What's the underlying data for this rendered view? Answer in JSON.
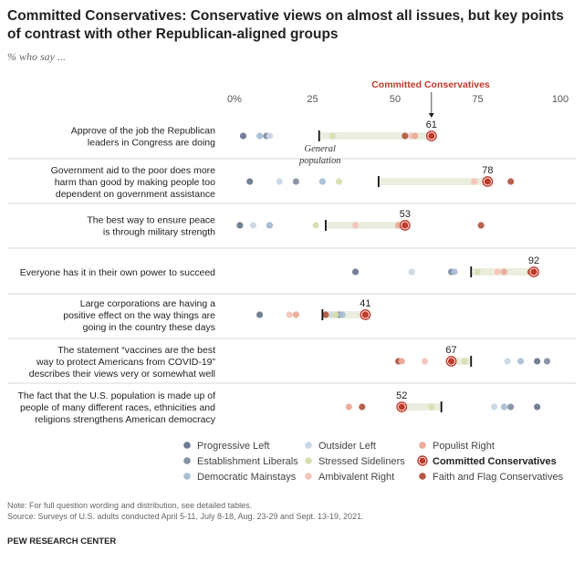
{
  "title_lines": [
    "Committed Conservatives: Conservative views on almost all issues, but key points",
    "of contrast with other Republican-aligned groups"
  ],
  "subtitle": "% who say ...",
  "annotation_top": "Committed Conservatives",
  "general_population_label": [
    "General",
    "population"
  ],
  "colors": {
    "Progressive Left": "#6b7a8f",
    "Establishment Liberals": "#8590a3",
    "Democratic Mainstays": "#a9bfd6",
    "Outsider Left": "#c9d7e6",
    "Stressed Sideliners": "#d7dfb2",
    "Ambivalent Right": "#f3c4bb",
    "Populist Right": "#ecaa99",
    "Committed Conservatives": "#c0392b",
    "Faith and Flag Conservatives": "#b05a45",
    "band": "#ebeedf",
    "divider": "#cccccc"
  },
  "legend": [
    {
      "label": "Progressive Left",
      "group": "Progressive Left"
    },
    {
      "label": "Outsider Left",
      "group": "Outsider Left"
    },
    {
      "label": "Populist Right",
      "group": "Populist Right"
    },
    {
      "label": "Establishment Liberals",
      "group": "Establishment Liberals"
    },
    {
      "label": "Stressed Sideliners",
      "group": "Stressed Sideliners"
    },
    {
      "label": "Committed Conservatives",
      "group": "Committed Conservatives"
    },
    {
      "label": "Democratic Mainstays",
      "group": "Democratic Mainstays"
    },
    {
      "label": "Ambivalent Right",
      "group": "Ambivalent Right"
    },
    {
      "label": "Faith and Flag Conservatives",
      "group": "Faith and Flag Conservatives"
    }
  ],
  "chart_data": {
    "type": "scatter",
    "xlim": [
      0,
      100
    ],
    "xticks": [
      "0%",
      "25",
      "50",
      "75",
      "100"
    ],
    "rows": [
      {
        "label": [
          "Approve of the job the Republican",
          "leaders in Congress are doing"
        ],
        "general_population": 27,
        "committed_conservatives": 61,
        "value_label": "61",
        "points": [
          {
            "group": "Progressive Left",
            "value": 4
          },
          {
            "group": "Democratic Mainstays",
            "value": 9
          },
          {
            "group": "Establishment Liberals",
            "value": 11
          },
          {
            "group": "Outsider Left",
            "value": 12
          },
          {
            "group": "Stressed Sideliners",
            "value": 31
          },
          {
            "group": "Faith and Flag Conservatives",
            "value": 53
          },
          {
            "group": "Ambivalent Right",
            "value": 55
          },
          {
            "group": "Populist Right",
            "value": 56
          }
        ]
      },
      {
        "label": [
          "Government aid to the poor does more",
          "harm than good by making people too",
          "dependent on government assistance"
        ],
        "general_population": 45,
        "committed_conservatives": 78,
        "value_label": "78",
        "points": [
          {
            "group": "Progressive Left",
            "value": 6
          },
          {
            "group": "Outsider Left",
            "value": 15
          },
          {
            "group": "Establishment Liberals",
            "value": 20
          },
          {
            "group": "Democratic Mainstays",
            "value": 28
          },
          {
            "group": "Stressed Sideliners",
            "value": 33
          },
          {
            "group": "Ambivalent Right",
            "value": 74
          },
          {
            "group": "Populist Right",
            "value": 78
          },
          {
            "group": "Faith and Flag Conservatives",
            "value": 85
          }
        ]
      },
      {
        "label": [
          "The best way to ensure peace",
          "is through military strength"
        ],
        "general_population": 29,
        "committed_conservatives": 53,
        "value_label": "53",
        "points": [
          {
            "group": "Progressive Left",
            "value": 3
          },
          {
            "group": "Outsider Left",
            "value": 7
          },
          {
            "group": "Establishment Liberals",
            "value": 12
          },
          {
            "group": "Democratic Mainstays",
            "value": 12
          },
          {
            "group": "Stressed Sideliners",
            "value": 26
          },
          {
            "group": "Ambivalent Right",
            "value": 38
          },
          {
            "group": "Populist Right",
            "value": 51
          },
          {
            "group": "Faith and Flag Conservatives",
            "value": 76
          }
        ]
      },
      {
        "label": [
          "Everyone has it in their own power to succeed"
        ],
        "general_population": 73,
        "committed_conservatives": 92,
        "value_label": "92",
        "points": [
          {
            "group": "Progressive Left",
            "value": 38
          },
          {
            "group": "Outsider Left",
            "value": 55
          },
          {
            "group": "Establishment Liberals",
            "value": 67
          },
          {
            "group": "Democratic Mainstays",
            "value": 68
          },
          {
            "group": "Stressed Sideliners",
            "value": 75
          },
          {
            "group": "Ambivalent Right",
            "value": 81
          },
          {
            "group": "Populist Right",
            "value": 83
          },
          {
            "group": "Faith and Flag Conservatives",
            "value": 91
          }
        ]
      },
      {
        "label": [
          "Large corporations are having a",
          "positive effect on the way things are",
          "going in the country these days"
        ],
        "general_population": 28,
        "committed_conservatives": 41,
        "value_label": "41",
        "points": [
          {
            "group": "Progressive Left",
            "value": 9
          },
          {
            "group": "Ambivalent Right",
            "value": 18
          },
          {
            "group": "Populist Right",
            "value": 20
          },
          {
            "group": "Faith and Flag Conservatives",
            "value": 29
          },
          {
            "group": "Outsider Left",
            "value": 31
          },
          {
            "group": "Establishment Liberals",
            "value": 33
          },
          {
            "group": "Stressed Sideliners",
            "value": 32
          },
          {
            "group": "Democratic Mainstays",
            "value": 34
          }
        ]
      },
      {
        "label": [
          "The statement “vaccines are the best",
          "way to protect Americans from COVID-19”",
          "describes their views very or somewhat well"
        ],
        "general_population": 73,
        "committed_conservatives": 67,
        "value_label": "67",
        "points": [
          {
            "group": "Faith and Flag Conservatives",
            "value": 51
          },
          {
            "group": "Populist Right",
            "value": 52
          },
          {
            "group": "Ambivalent Right",
            "value": 59
          },
          {
            "group": "Stressed Sideliners",
            "value": 71
          },
          {
            "group": "Outsider Left",
            "value": 84
          },
          {
            "group": "Democratic Mainstays",
            "value": 88
          },
          {
            "group": "Progressive Left",
            "value": 93
          },
          {
            "group": "Establishment Liberals",
            "value": 96
          }
        ]
      },
      {
        "label": [
          "The fact that the U.S. population is made up of",
          "people of many different races, ethnicities and",
          "religions strengthens American democracy"
        ],
        "general_population": 64,
        "committed_conservatives": 52,
        "value_label": "52",
        "points": [
          {
            "group": "Populist Right",
            "value": 36
          },
          {
            "group": "Faith and Flag Conservatives",
            "value": 40
          },
          {
            "group": "Ambivalent Right",
            "value": 52
          },
          {
            "group": "Stressed Sideliners",
            "value": 61
          },
          {
            "group": "Outsider Left",
            "value": 80
          },
          {
            "group": "Democratic Mainstays",
            "value": 83
          },
          {
            "group": "Establishment Liberals",
            "value": 85
          },
          {
            "group": "Progressive Left",
            "value": 93
          }
        ]
      }
    ]
  },
  "notes": [
    "Note: For full question wording and distribution, see detailed tables.",
    "Source: Surveys of U.S. adults conducted April 5-11, July 8-18, Aug. 23-29 and Sept. 13-19, 2021."
  ],
  "source_org": "PEW RESEARCH CENTER"
}
